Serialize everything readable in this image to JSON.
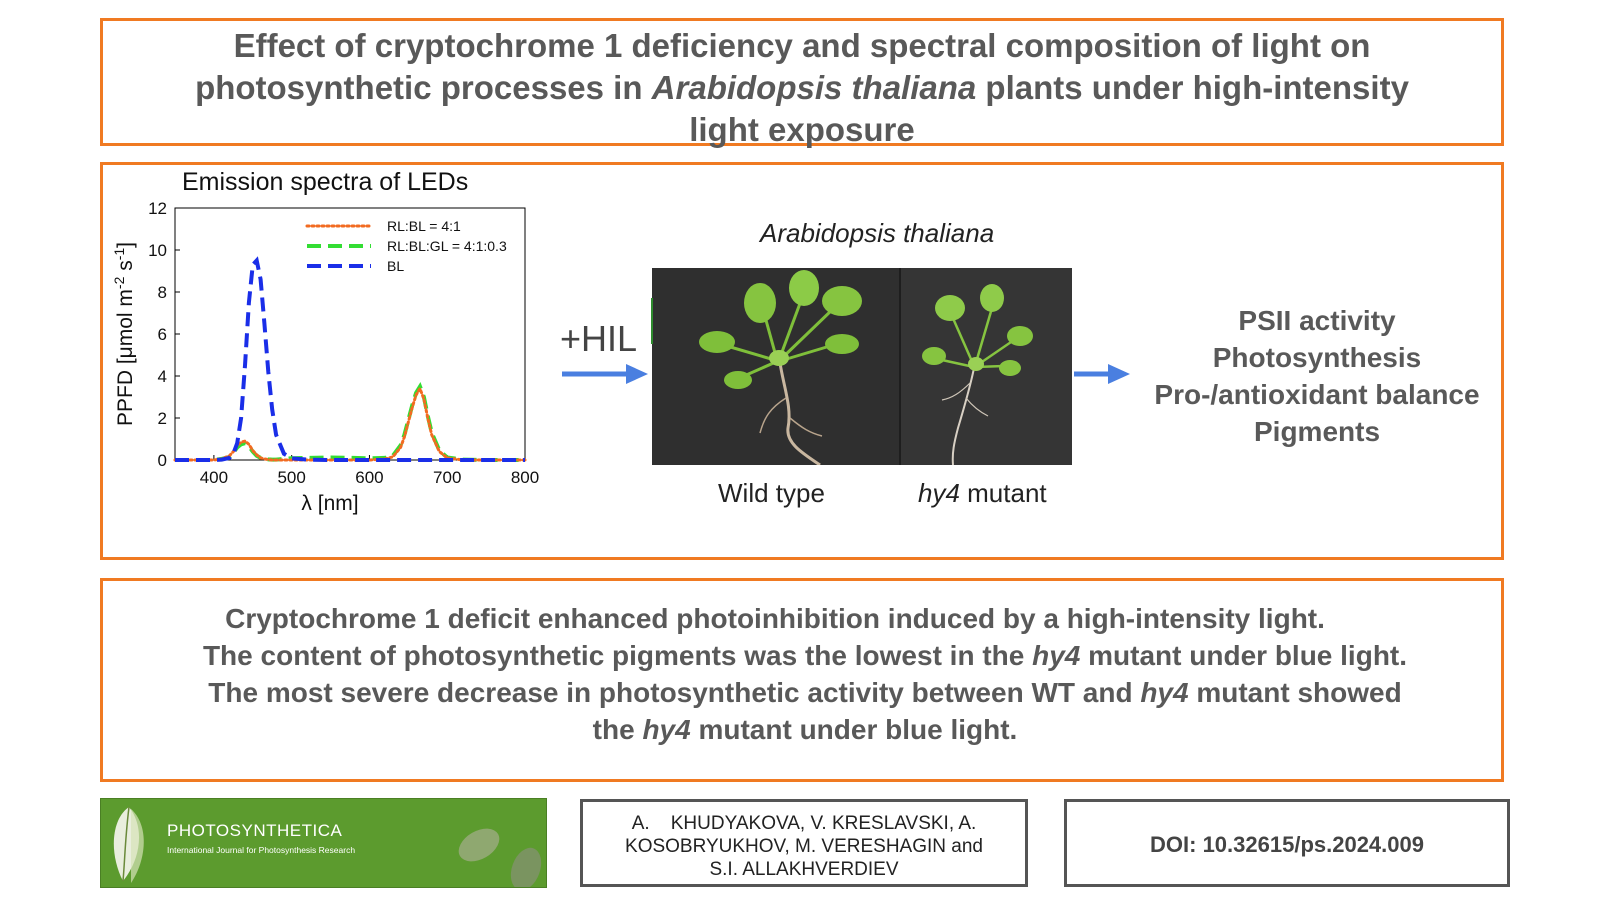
{
  "title": {
    "line1": "Effect of cryptochrome 1 deficiency and spectral composition of light on",
    "line2_pre": "photosynthetic processes in ",
    "line2_italic": "Arabidopsis thaliana",
    "line2_post": " plants under high-intensity",
    "line3": "light exposure"
  },
  "chart_data": {
    "type": "line",
    "title": "Emission spectra of LEDs",
    "xlabel": "λ [nm]",
    "ylabel": "PPFD [μmol m⁻² s⁻¹]",
    "ylabel_parts": {
      "pre": "PPFD [μmol m",
      "sup1": "-2",
      "mid": " s",
      "sup2": "-1",
      "post": "]"
    },
    "xlim": [
      350,
      800
    ],
    "ylim": [
      0,
      12
    ],
    "xticks": [
      "400",
      "500",
      "600",
      "700",
      "800"
    ],
    "yticks": [
      "0",
      "2",
      "4",
      "6",
      "8",
      "10",
      "12"
    ],
    "x": [
      350,
      380,
      400,
      410,
      420,
      425,
      430,
      435,
      440,
      445,
      450,
      455,
      460,
      465,
      470,
      475,
      480,
      490,
      500,
      520,
      550,
      580,
      600,
      620,
      630,
      640,
      645,
      650,
      655,
      660,
      665,
      670,
      675,
      680,
      690,
      700,
      720,
      750,
      800
    ],
    "series": [
      {
        "name": "RL:BL = 4:1",
        "color": "#f26b21",
        "style": "dotted",
        "values": [
          0,
          0,
          0,
          0.05,
          0.2,
          0.4,
          0.7,
          0.85,
          0.9,
          0.75,
          0.45,
          0.25,
          0.1,
          0.05,
          0.02,
          0,
          0,
          0,
          0,
          0,
          0,
          0,
          0,
          0.05,
          0.15,
          0.6,
          1.1,
          1.8,
          2.5,
          3.1,
          3.4,
          2.9,
          2.0,
          1.2,
          0.4,
          0.1,
          0,
          0,
          0
        ]
      },
      {
        "name": "RL:BL:GL = 4:1:0.3",
        "color": "#33dd33",
        "style": "dashed",
        "values": [
          0,
          0,
          0,
          0.05,
          0.15,
          0.35,
          0.6,
          0.75,
          0.8,
          0.65,
          0.4,
          0.2,
          0.1,
          0.05,
          0.03,
          0.02,
          0.02,
          0.05,
          0.08,
          0.1,
          0.12,
          0.1,
          0.08,
          0.1,
          0.2,
          0.7,
          1.2,
          1.9,
          2.6,
          3.2,
          3.5,
          3.0,
          2.1,
          1.3,
          0.45,
          0.12,
          0.02,
          0,
          0
        ]
      },
      {
        "name": "BL",
        "color": "#1a2ee8",
        "style": "dashed",
        "values": [
          0,
          0,
          0,
          0.02,
          0.1,
          0.3,
          0.8,
          2.0,
          4.5,
          7.5,
          9.3,
          9.5,
          8.6,
          6.5,
          4.2,
          2.4,
          1.2,
          0.3,
          0.08,
          0.02,
          0,
          0,
          0,
          0,
          0,
          0,
          0,
          0,
          0,
          0,
          0,
          0,
          0,
          0,
          0,
          0,
          0,
          0,
          0
        ]
      }
    ],
    "legend_placement": "top-right",
    "grid": false
  },
  "hil_label": "+HIL",
  "species_label": "Arabidopsis thaliana",
  "plant_labels": {
    "wild_type": "Wild type",
    "mutant_italic": "hy4",
    "mutant_post": " mutant"
  },
  "outcomes": [
    "PSII activity",
    "Photosynthesis",
    "Pro-/antioxidant balance",
    "Pigments"
  ],
  "conclusions": {
    "line1": "Cryptochrome 1 deficit enhanced photoinhibition induced by a high-intensity light.",
    "line2_pre": "The content of photosynthetic pigments was the lowest in the ",
    "line2_italic": "hy4",
    "line2_post": " mutant under blue light.",
    "line3_pre": "The most severe decrease in photosynthetic activity between WT and ",
    "line3_italic": "hy4",
    "line3_post": " mutant showed",
    "line4_pre": "the ",
    "line4_italic": "hy4",
    "line4_post": " mutant under blue light."
  },
  "journal": {
    "name": "PHOTOSYNTHETICA",
    "subtitle": "International Journal for Photosynthesis Research"
  },
  "authors": {
    "line1": "A.    KHUDYAKOVA, V. KRESLAVSKI, A.",
    "line2": "KOSOBRYUKHOV, M. VERESHAGIN and",
    "line3": "S.I. ALLAKHVERDIEV"
  },
  "doi": "DOI: 10.32615/ps.2024.009",
  "colors": {
    "frame_orange": "#f07a22",
    "arrow_blue": "#4a7fe0",
    "journal_green": "#5c9b2e"
  }
}
